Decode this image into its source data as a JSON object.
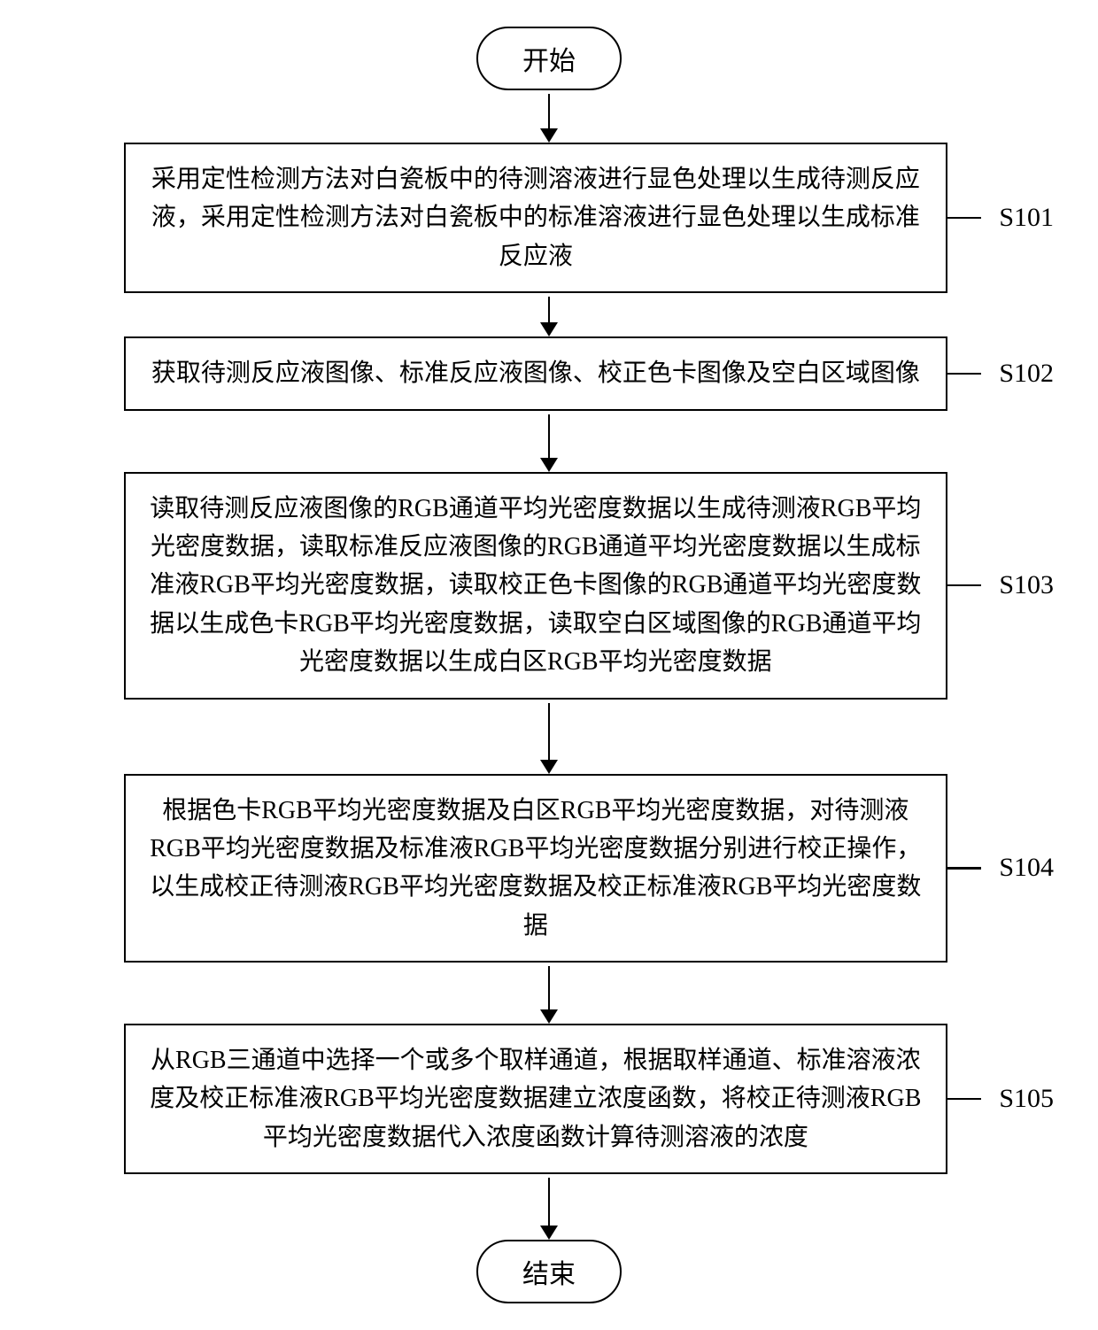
{
  "type": "flowchart",
  "background_color": "#ffffff",
  "border_color": "#000000",
  "border_width": 2.5,
  "font_family": "SimSun",
  "label_font_family": "Times New Roman",
  "terminator_fontsize": 30,
  "process_fontsize": 28,
  "label_fontsize": 30,
  "process_box_width": 960,
  "terminator_radius": 50,
  "arrow_color": "#000000",
  "arrow_head_size": 16,
  "start": {
    "label": "开始"
  },
  "end": {
    "label": "结束"
  },
  "steps": [
    {
      "id": "S101",
      "text": "采用定性检测方法对白瓷板中的待测溶液进行显色处理以生成待测反应液，采用定性检测方法对白瓷板中的标准溶液进行显色处理以生成标准反应液",
      "arrow_height": 40
    },
    {
      "id": "S102",
      "text": "获取待测反应液图像、标准反应液图像、校正色卡图像及空白区域图像",
      "arrow_height": 30
    },
    {
      "id": "S103",
      "text": "读取待测反应液图像的RGB通道平均光密度数据以生成待测液RGB平均光密度数据，读取标准反应液图像的RGB通道平均光密度数据以生成标准液RGB平均光密度数据，读取校正色卡图像的RGB通道平均光密度数据以生成色卡RGB平均光密度数据，读取空白区域图像的RGB通道平均光密度数据以生成白区RGB平均光密度数据",
      "arrow_height": 50
    },
    {
      "id": "S104",
      "text": "根据色卡RGB平均光密度数据及白区RGB平均光密度数据，对待测液RGB平均光密度数据及标准液RGB平均光密度数据分别进行校正操作，以生成校正待测液RGB平均光密度数据及校正标准液RGB平均光密度数据",
      "arrow_height": 65
    },
    {
      "id": "S105",
      "text": "从RGB三通道中选择一个或多个取样通道，根据取样通道、标准溶液浓度及校正标准液RGB平均光密度数据建立浓度函数，将校正待测液RGB平均光密度数据代入浓度函数计算待测溶液的浓度",
      "arrow_height": 50
    }
  ],
  "final_arrow_height": 55
}
